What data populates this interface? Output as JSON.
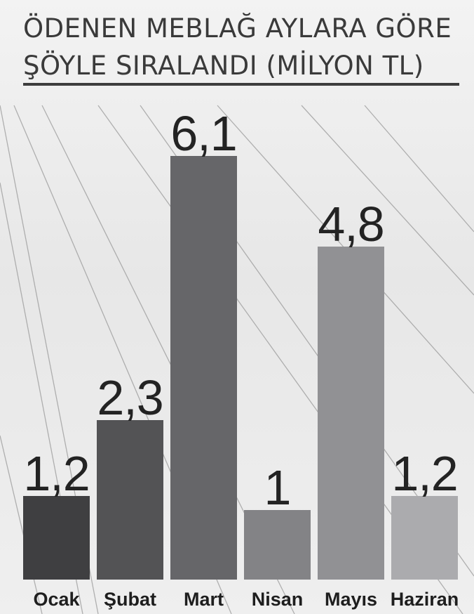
{
  "title": {
    "line1": "ÖDENEN MEBLAĞ AYLARA GÖRE",
    "line2": "ŞÖYLE SIRALANDI (MİLYON TL)"
  },
  "colors": {
    "bars": [
      "#3f3f41",
      "#535355",
      "#666669",
      "#838386",
      "#919194",
      "#ababae"
    ]
  },
  "chart_data": {
    "type": "bar",
    "title": "ÖDENEN MEBLAĞ AYLARA GÖRE ŞÖYLE SIRALANDI (MİLYON TL)",
    "categories": [
      "Ocak",
      "Şubat",
      "Mart",
      "Nisan",
      "Mayıs",
      "Haziran"
    ],
    "values": [
      1.2,
      2.3,
      6.1,
      1,
      4.8,
      1.2
    ],
    "value_labels": [
      "1,2",
      "2,3",
      "6,1",
      "1",
      "4,8",
      "1,2"
    ],
    "xlabel": "",
    "ylabel": "",
    "ylim": [
      0,
      6.1
    ],
    "grid": false,
    "legend": "none"
  }
}
